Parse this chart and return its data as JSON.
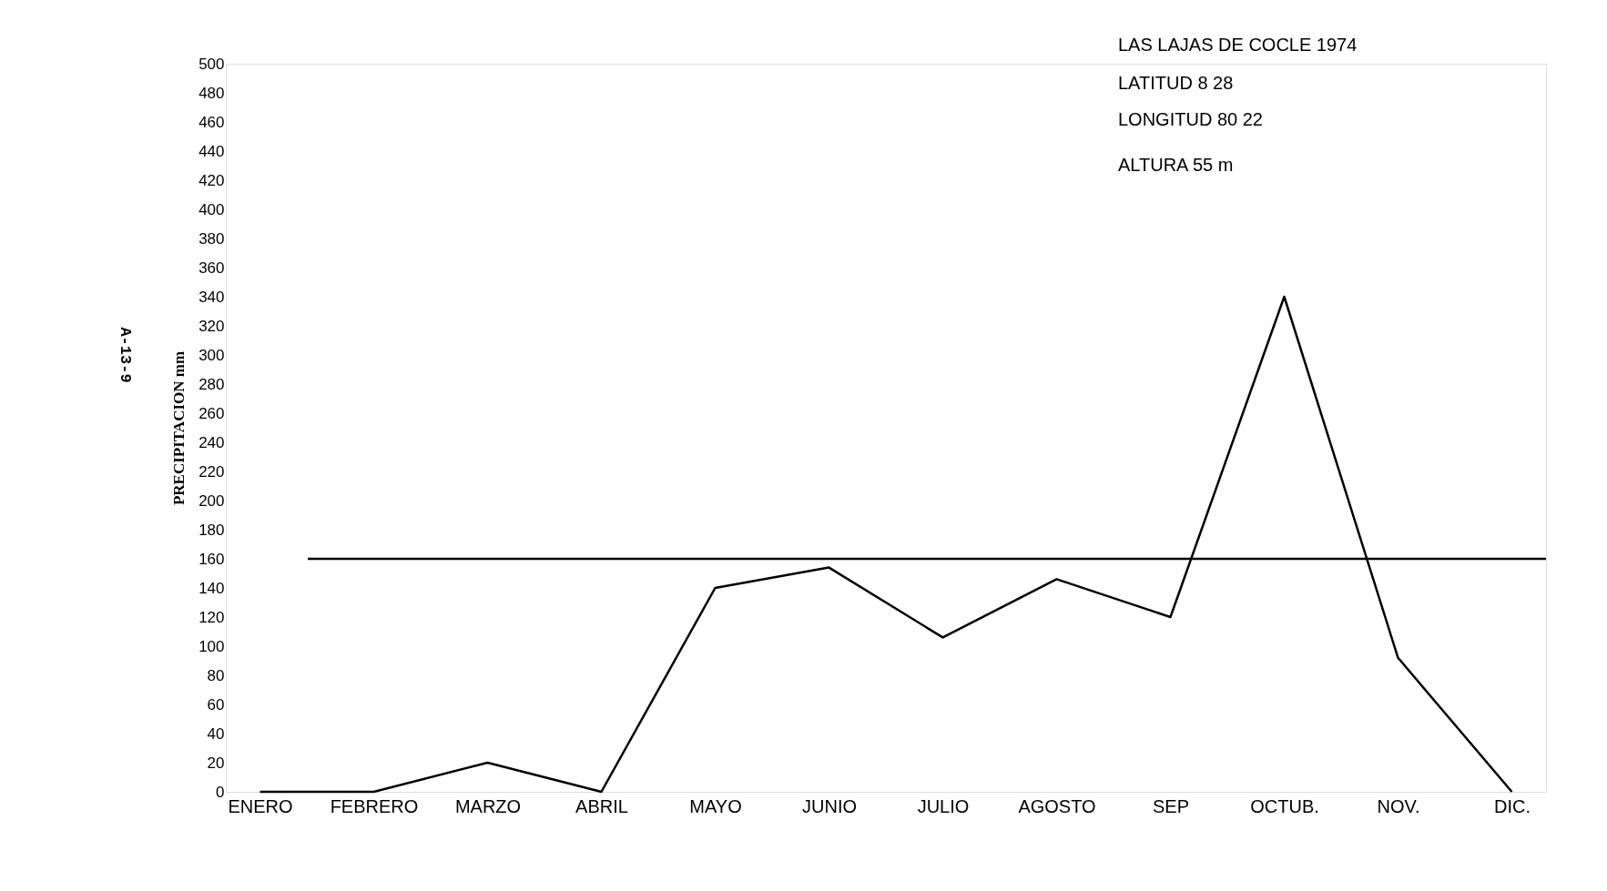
{
  "chart_data": {
    "type": "line",
    "ylabel": "PRECIPITACION mm",
    "categories": [
      "ENERO",
      "FEBRERO",
      "MARZO",
      "ABRIL",
      "MAYO",
      "JUNIO",
      "JULIO",
      "AGOSTO",
      "SEP",
      "OCTUB.",
      "NOV.",
      "DIC."
    ],
    "series": [
      {
        "color": "#000000",
        "values": [
          0,
          0,
          20,
          0,
          140,
          154,
          106,
          146,
          120,
          340,
          92,
          0
        ]
      }
    ],
    "ylim": [
      0,
      500
    ],
    "yticks": [
      0,
      20,
      40,
      60,
      80,
      100,
      120,
      140,
      160,
      180,
      200,
      220,
      240,
      260,
      280,
      300,
      320,
      340,
      360,
      380,
      400,
      420,
      440,
      460,
      480,
      500
    ],
    "ref_lines": [
      {
        "axis": "y",
        "value": 160,
        "color": "#000000"
      }
    ],
    "annotations": [
      "LAS LAJAS DE COCLE   1974",
      "LATITUD   8  28",
      "LONGITUD   80  22",
      "ALTURA   55 m",
      "A-13-9"
    ],
    "grid": false,
    "marker": "none",
    "line_style": "solid"
  }
}
